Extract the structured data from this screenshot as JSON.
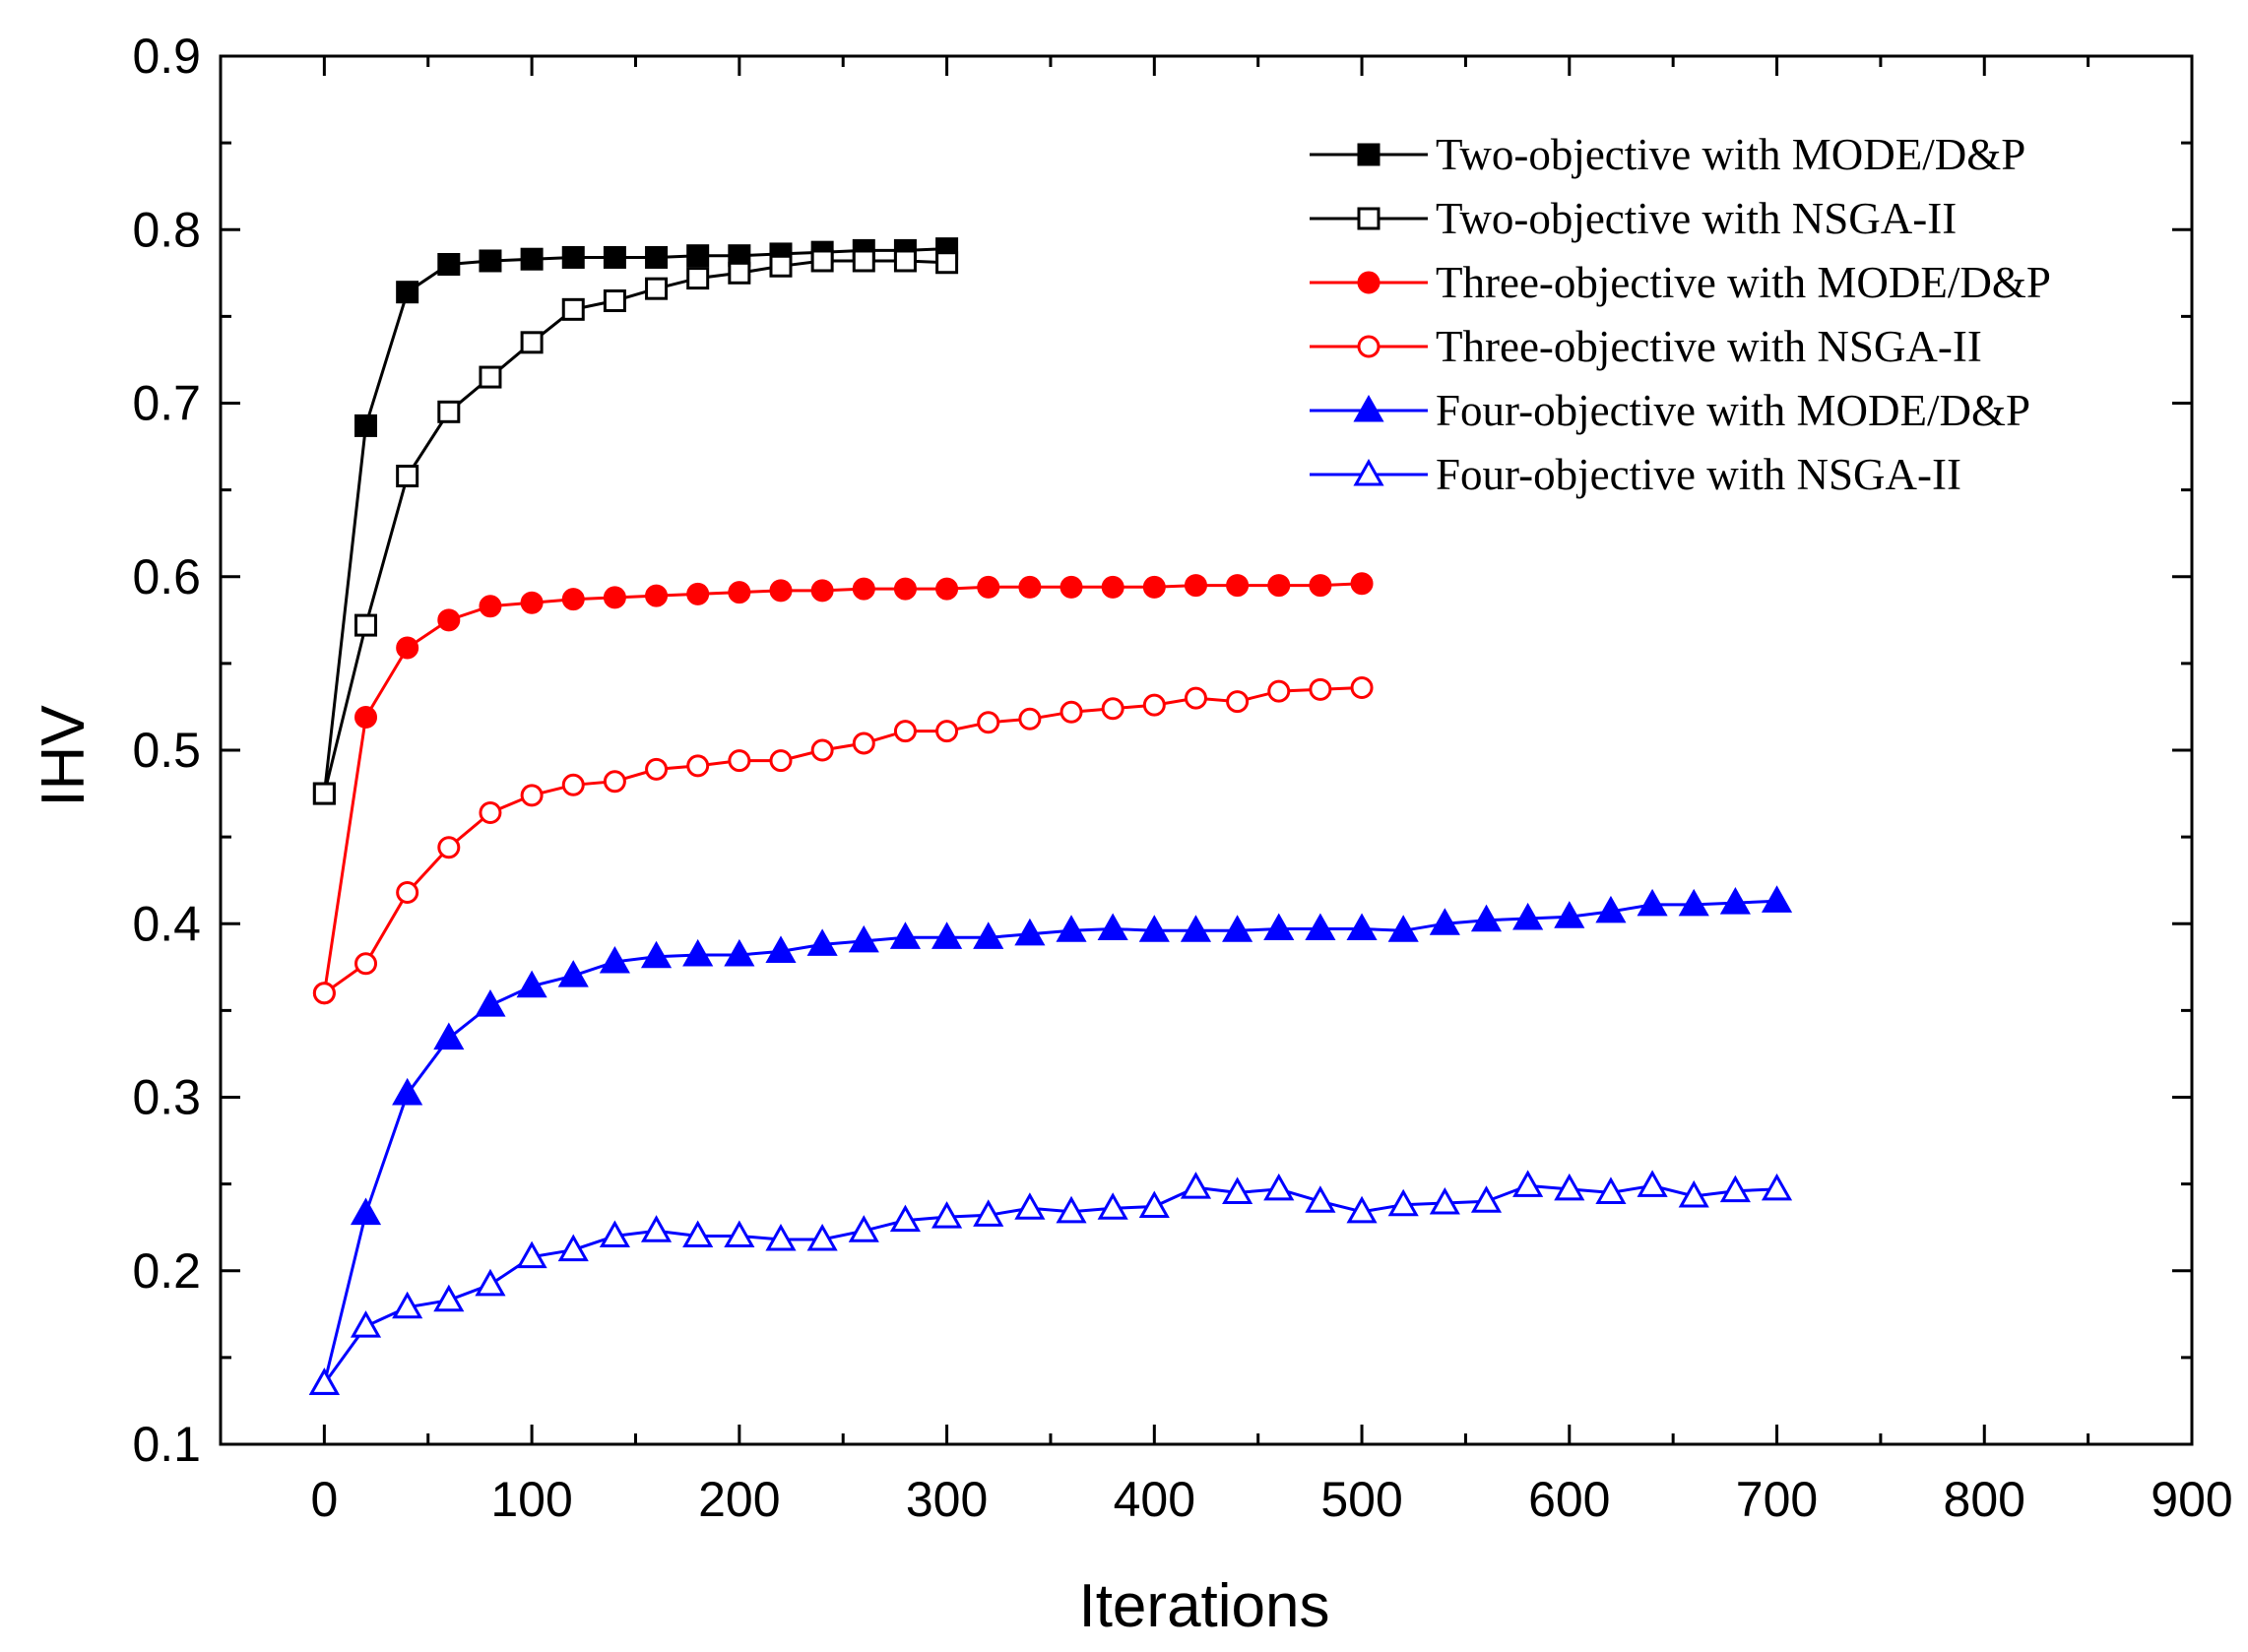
{
  "chart_data": {
    "type": "line",
    "title": "",
    "xlabel": "Iterations",
    "ylabel": "IHV",
    "xlim": [
      -50,
      900
    ],
    "ylim": [
      0.1,
      0.9
    ],
    "xticks": [
      0,
      100,
      200,
      300,
      400,
      500,
      600,
      700,
      800,
      900
    ],
    "yticks": [
      0.1,
      0.2,
      0.3,
      0.4,
      0.5,
      0.6,
      0.7,
      0.8,
      0.9
    ],
    "xtick_labels": [
      "0",
      "100",
      "200",
      "300",
      "400",
      "500",
      "600",
      "700",
      "800",
      "900"
    ],
    "ytick_labels": [
      "0.1",
      "0.2",
      "0.3",
      "0.4",
      "0.5",
      "0.6",
      "0.7",
      "0.8",
      "0.9"
    ],
    "legend_position": "top-right",
    "grid": false,
    "series": [
      {
        "name": "Two-objective with MODE/D&P",
        "color": "#000000",
        "marker": "square",
        "filled": true,
        "x": [
          0,
          20,
          40,
          60,
          80,
          100,
          120,
          140,
          160,
          180,
          200,
          220,
          240,
          260,
          280,
          300
        ],
        "values": [
          0.475,
          0.687,
          0.764,
          0.78,
          0.782,
          0.783,
          0.784,
          0.784,
          0.784,
          0.785,
          0.785,
          0.786,
          0.787,
          0.788,
          0.788,
          0.789
        ]
      },
      {
        "name": "Two-objective with NSGA-II",
        "color": "#000000",
        "marker": "square",
        "filled": false,
        "x": [
          0,
          20,
          40,
          60,
          80,
          100,
          120,
          140,
          160,
          180,
          200,
          220,
          240,
          260,
          280,
          300
        ],
        "values": [
          0.475,
          0.572,
          0.658,
          0.695,
          0.715,
          0.735,
          0.754,
          0.759,
          0.766,
          0.772,
          0.775,
          0.779,
          0.782,
          0.782,
          0.782,
          0.781
        ]
      },
      {
        "name": "Three-objective with MODE/D&P",
        "color": "#ff0000",
        "marker": "circle",
        "filled": true,
        "x": [
          0,
          20,
          40,
          60,
          80,
          100,
          120,
          140,
          160,
          180,
          200,
          220,
          240,
          260,
          280,
          300,
          320,
          340,
          360,
          380,
          400,
          420,
          440,
          460,
          480,
          500
        ],
        "values": [
          0.36,
          0.519,
          0.559,
          0.575,
          0.583,
          0.585,
          0.587,
          0.588,
          0.589,
          0.59,
          0.591,
          0.592,
          0.592,
          0.593,
          0.593,
          0.593,
          0.594,
          0.594,
          0.594,
          0.594,
          0.594,
          0.595,
          0.595,
          0.595,
          0.595,
          0.596
        ]
      },
      {
        "name": "Three-objective with NSGA-II",
        "color": "#ff0000",
        "marker": "circle",
        "filled": false,
        "x": [
          0,
          20,
          40,
          60,
          80,
          100,
          120,
          140,
          160,
          180,
          200,
          220,
          240,
          260,
          280,
          300,
          320,
          340,
          360,
          380,
          400,
          420,
          440,
          460,
          480,
          500
        ],
        "values": [
          0.36,
          0.377,
          0.418,
          0.444,
          0.464,
          0.474,
          0.48,
          0.482,
          0.489,
          0.491,
          0.494,
          0.494,
          0.5,
          0.504,
          0.511,
          0.511,
          0.516,
          0.518,
          0.522,
          0.524,
          0.526,
          0.53,
          0.528,
          0.534,
          0.535,
          0.536
        ]
      },
      {
        "name": "Four-objective with MODE/D&P",
        "color": "#0000ff",
        "marker": "triangle",
        "filled": true,
        "x": [
          0,
          20,
          40,
          60,
          80,
          100,
          120,
          140,
          160,
          180,
          200,
          220,
          240,
          260,
          280,
          300,
          320,
          340,
          360,
          380,
          400,
          420,
          440,
          460,
          480,
          500,
          520,
          540,
          560,
          580,
          600,
          620,
          640,
          660,
          680,
          700
        ],
        "values": [
          0.135,
          0.233,
          0.302,
          0.334,
          0.353,
          0.364,
          0.37,
          0.378,
          0.381,
          0.382,
          0.382,
          0.384,
          0.388,
          0.39,
          0.392,
          0.392,
          0.392,
          0.394,
          0.396,
          0.397,
          0.396,
          0.396,
          0.396,
          0.397,
          0.397,
          0.397,
          0.396,
          0.4,
          0.402,
          0.403,
          0.404,
          0.407,
          0.411,
          0.411,
          0.412,
          0.413
        ]
      },
      {
        "name": "Four-objective with NSGA-II",
        "color": "#0000ff",
        "marker": "triangle",
        "filled": false,
        "x": [
          0,
          20,
          40,
          60,
          80,
          100,
          120,
          140,
          160,
          180,
          200,
          220,
          240,
          260,
          280,
          300,
          320,
          340,
          360,
          380,
          400,
          420,
          440,
          460,
          480,
          500,
          520,
          540,
          560,
          580,
          600,
          620,
          640,
          660,
          680,
          700
        ],
        "values": [
          0.135,
          0.168,
          0.179,
          0.183,
          0.192,
          0.208,
          0.212,
          0.22,
          0.223,
          0.22,
          0.22,
          0.218,
          0.218,
          0.223,
          0.229,
          0.231,
          0.232,
          0.236,
          0.234,
          0.236,
          0.237,
          0.248,
          0.245,
          0.247,
          0.24,
          0.234,
          0.238,
          0.239,
          0.24,
          0.249,
          0.247,
          0.245,
          0.249,
          0.243,
          0.246,
          0.247
        ]
      }
    ]
  }
}
